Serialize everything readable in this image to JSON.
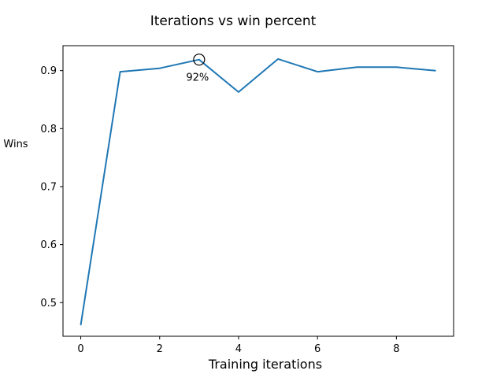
{
  "chart_data": {
    "type": "line",
    "title": "Iterations vs win percent",
    "xlabel": "Training iterations",
    "ylabel": "Wins",
    "x": [
      0,
      1,
      2,
      3,
      4,
      5,
      6,
      7,
      8,
      9
    ],
    "series": [
      {
        "values": [
          0.461,
          0.898,
          0.904,
          0.919,
          0.863,
          0.92,
          0.898,
          0.906,
          0.906,
          0.9
        ],
        "color": "#1f77b4"
      }
    ],
    "xlim": [
      -0.45,
      9.45
    ],
    "ylim": [
      0.442,
      0.943
    ],
    "xticks": [
      0,
      2,
      4,
      6,
      8
    ],
    "yticks": [
      0.5,
      0.6,
      0.7,
      0.8,
      0.9
    ],
    "grid": false,
    "annotations": [
      {
        "x": 3,
        "y": 0.919,
        "text": "92%",
        "marker": "open-circle"
      }
    ]
  }
}
